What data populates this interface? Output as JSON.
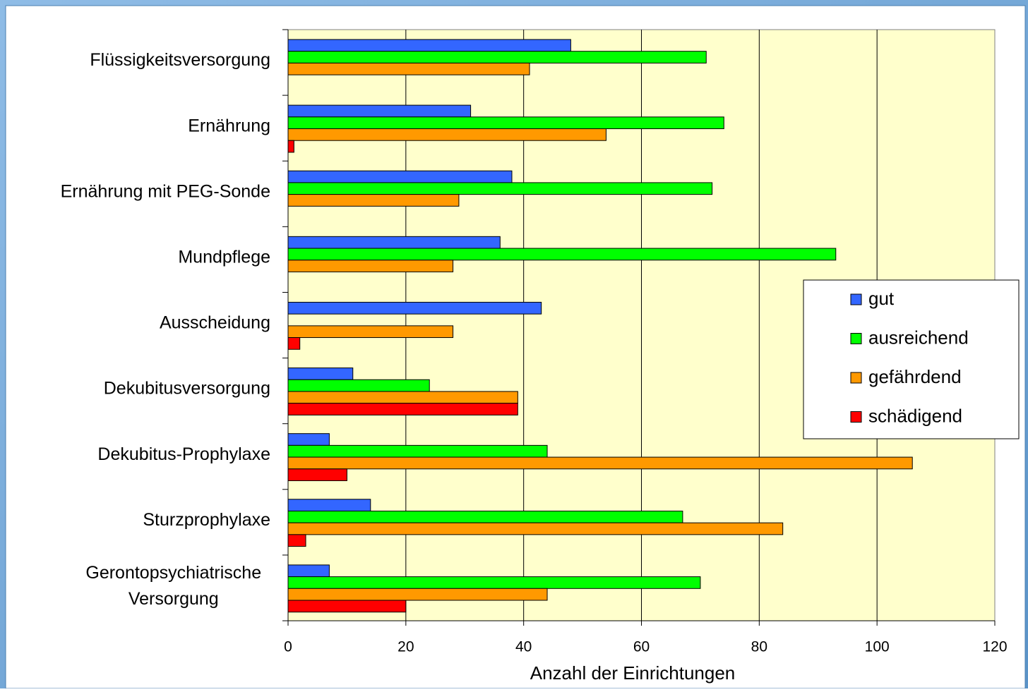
{
  "chart_data": {
    "type": "hbar",
    "xlabel": "Anzahl der Einrichtungen",
    "categories": [
      "Flüssigkeitsversorgung",
      "Ernährung",
      "Ernährung mit PEG-Sonde",
      "Mundpflege",
      "Ausscheidung",
      "Dekubitusversorgung",
      "Dekubitus-Prophylaxe",
      "Sturzprophylaxe",
      "Gerontopsychiatrische\nVersorgung"
    ],
    "series": [
      {
        "name": "gut",
        "color": "#3366ff",
        "values": [
          48,
          31,
          38,
          36,
          43,
          11,
          7,
          14,
          7
        ]
      },
      {
        "name": "ausreichend",
        "color": "#00ff00",
        "values": [
          71,
          74,
          72,
          93,
          0,
          24,
          44,
          67,
          70
        ]
      },
      {
        "name": "gefährdend",
        "color": "#ff9900",
        "values": [
          41,
          54,
          29,
          28,
          28,
          39,
          106,
          84,
          44
        ]
      },
      {
        "name": "schädigend",
        "color": "#ff0000",
        "values": [
          0,
          1,
          0,
          0,
          2,
          39,
          10,
          3,
          20
        ]
      }
    ],
    "xlim": [
      0,
      120
    ],
    "xticks": [
      0,
      20,
      40,
      60,
      80,
      100,
      120
    ],
    "grid": true,
    "legend": "right"
  }
}
